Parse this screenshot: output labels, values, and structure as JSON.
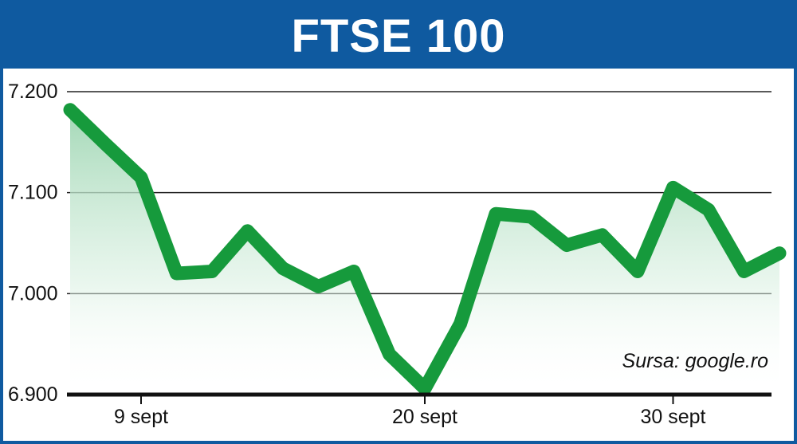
{
  "chart_data": {
    "type": "line",
    "title": "FTSE 100",
    "source": "Sursa: google.ro",
    "ylim": [
      6900,
      7200
    ],
    "y_ticks": [
      {
        "value": 7200,
        "label": "7.200"
      },
      {
        "value": 7100,
        "label": "7.100"
      },
      {
        "value": 7000,
        "label": "7.000"
      },
      {
        "value": 6900,
        "label": "6.900"
      }
    ],
    "x_ticks": [
      {
        "index": 2,
        "label": "9 sept"
      },
      {
        "index": 10,
        "label": "20 sept"
      },
      {
        "index": 17,
        "label": "30 sept"
      }
    ],
    "series": [
      {
        "values": [
          7182,
          7148,
          7115,
          7020,
          7022,
          7062,
          7025,
          7007,
          7022,
          6940,
          6906,
          6970,
          7079,
          7076,
          7048,
          7058,
          7022,
          7105,
          7083,
          7022,
          7040
        ]
      }
    ],
    "grid": true,
    "legend": "none",
    "colors": {
      "line": "#169a3c",
      "fill_top": "#9fd6b3",
      "header": "#0f5aa0",
      "grid": "#222222"
    }
  }
}
